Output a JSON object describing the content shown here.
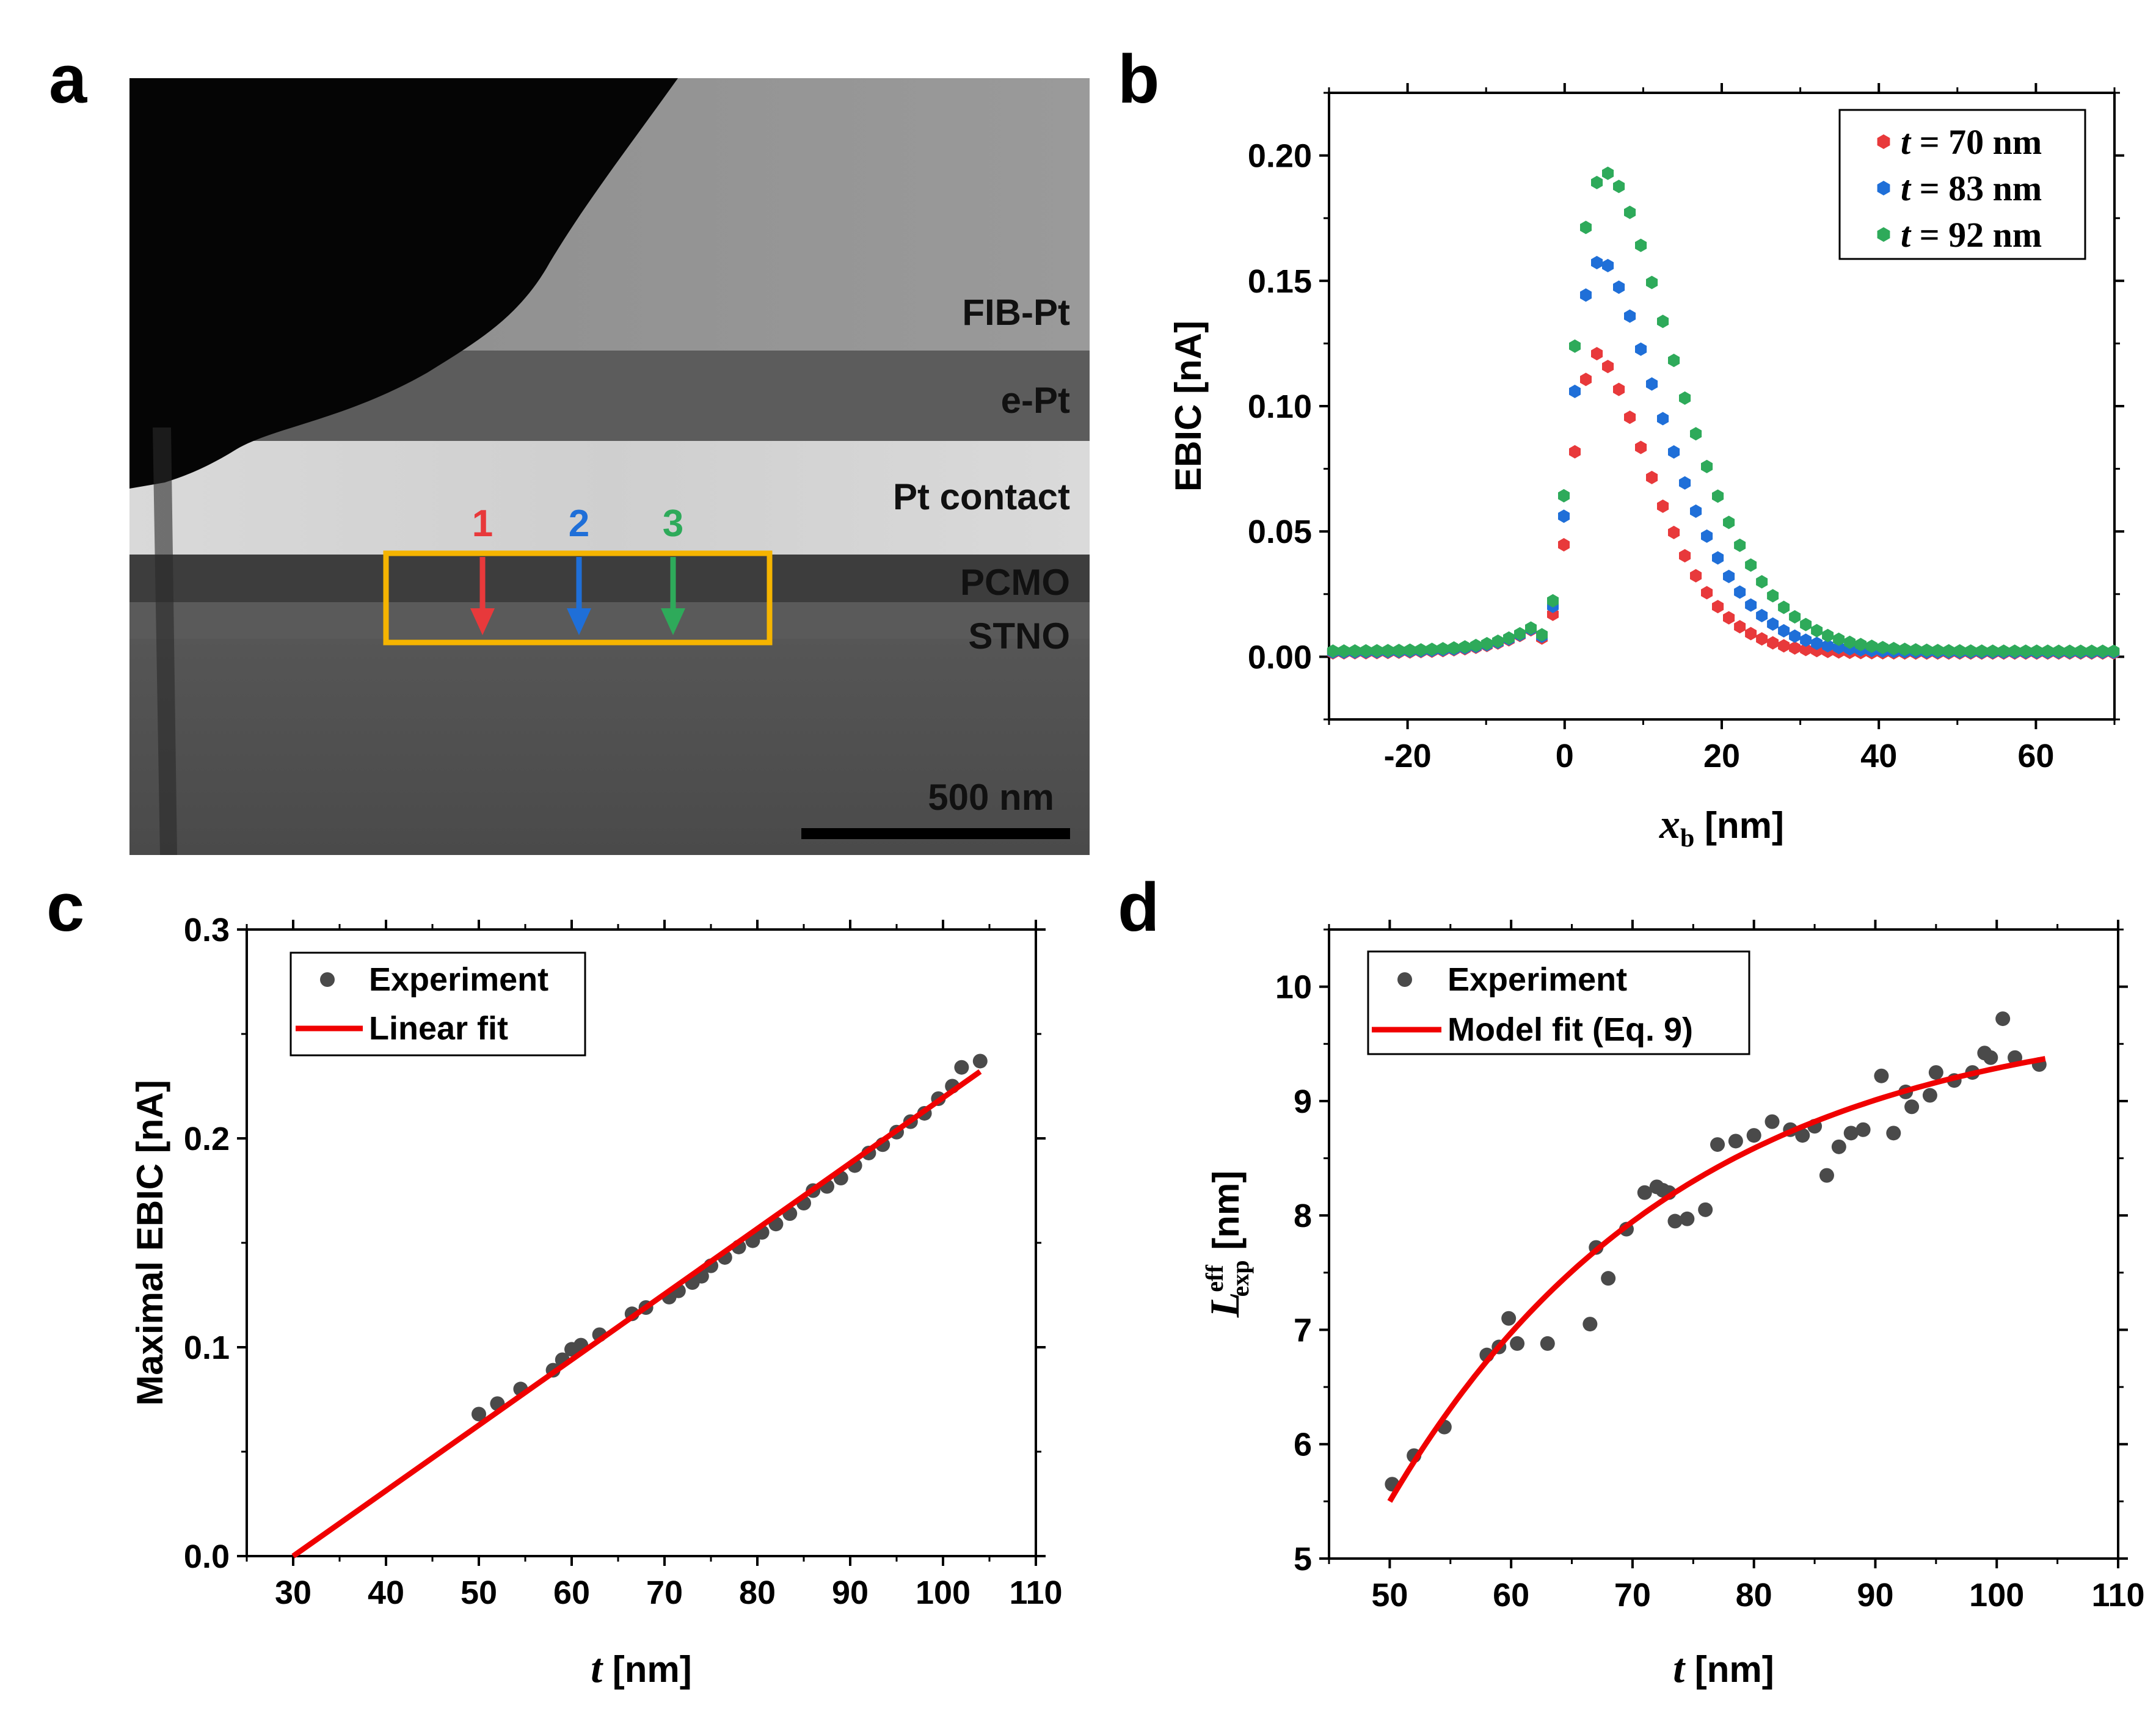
{
  "panels": {
    "a": {
      "letter": "a",
      "layer_labels": [
        "FIB-Pt",
        "e-Pt",
        "Pt contact",
        "PCMO",
        "STNO"
      ],
      "arrows": [
        {
          "label": "1",
          "color": "#e8393b"
        },
        {
          "label": "2",
          "color": "#1f6fd8"
        },
        {
          "label": "3",
          "color": "#2eaa5a"
        }
      ],
      "box_color": "#f5b400",
      "scale_bar_label": "500 nm"
    },
    "b": {
      "letter": "b"
    },
    "c": {
      "letter": "c"
    },
    "d": {
      "letter": "d"
    }
  },
  "chart_data": [
    {
      "id": "b",
      "type": "scatter",
      "xlabel_var": "x",
      "xlabel_sub": "b",
      "xlabel_unit": "[nm]",
      "ylabel": "EBIC [nA]",
      "xlim": [
        -30,
        70
      ],
      "ylim": [
        -0.025,
        0.225
      ],
      "xticks": [
        -20,
        0,
        20,
        40,
        60
      ],
      "yticks": [
        0.0,
        0.05,
        0.1,
        0.15,
        0.2
      ],
      "ytick_labels": [
        "0.00",
        "0.05",
        "0.10",
        "0.15",
        "0.20"
      ],
      "legend_position": "top-right",
      "series": [
        {
          "name": "t = 70 nm",
          "legend_var": "t",
          "legend_rest": "= 70 nm",
          "color": "#e8393b",
          "peak": 0.121,
          "peak_x": 4.0,
          "tail": 0.0015,
          "decay": 10.5
        },
        {
          "name": "t = 83 nm",
          "legend_var": "t",
          "legend_rest": "= 83 nm",
          "color": "#1f6fd8",
          "peak": 0.159,
          "peak_x": 4.5,
          "tail": 0.0018,
          "decay": 12.0
        },
        {
          "name": "t = 92 nm",
          "legend_var": "t",
          "legend_rest": "= 92 nm",
          "color": "#2eaa5a",
          "peak": 0.193,
          "peak_x": 5.5,
          "tail": 0.0022,
          "decay": 13.0
        }
      ]
    },
    {
      "id": "c",
      "type": "scatter",
      "xlabel_var": "t",
      "xlabel_unit": "[nm]",
      "ylabel": "Maximal EBIC [nA]",
      "xlim": [
        25,
        110
      ],
      "ylim": [
        0,
        0.3
      ],
      "xticks": [
        30,
        40,
        50,
        60,
        70,
        80,
        90,
        100,
        110
      ],
      "yticks": [
        0.0,
        0.1,
        0.2,
        0.3
      ],
      "ytick_labels": [
        "0.0",
        "0.1",
        "0.2",
        "0.3"
      ],
      "legend_position": "top-left",
      "legend": [
        "Experiment",
        "Linear fit"
      ],
      "experiment": {
        "x": [
          50,
          52,
          54.5,
          58,
          59,
          60,
          61,
          63,
          66.5,
          68,
          70.5,
          71.5,
          73,
          74,
          75,
          76.5,
          78,
          79.5,
          80.5,
          82,
          83.5,
          85,
          86,
          87.5,
          89,
          90.5,
          92,
          93.5,
          95,
          96.5,
          98,
          99.5,
          101,
          102,
          104
        ],
        "y": [
          0.068,
          0.073,
          0.08,
          0.089,
          0.094,
          0.099,
          0.101,
          0.106,
          0.116,
          0.119,
          0.124,
          0.127,
          0.131,
          0.134,
          0.139,
          0.143,
          0.148,
          0.151,
          0.155,
          0.159,
          0.164,
          0.169,
          0.175,
          0.177,
          0.181,
          0.187,
          0.193,
          0.197,
          0.203,
          0.208,
          0.212,
          0.219,
          0.225,
          0.234,
          0.237
        ]
      },
      "fit": {
        "x": [
          30,
          104
        ],
        "y": [
          0.0,
          0.232
        ]
      }
    },
    {
      "id": "d",
      "type": "scatter",
      "xlabel_var": "t",
      "xlabel_unit": "[nm]",
      "ylabel_var": "L",
      "ylabel_sup": "eff",
      "ylabel_sub": "exp",
      "ylabel_unit": "[nm]",
      "xlim": [
        45,
        110
      ],
      "ylim": [
        5,
        10.5
      ],
      "xticks": [
        50,
        60,
        70,
        80,
        90,
        100,
        110
      ],
      "yticks": [
        5,
        6,
        7,
        8,
        9,
        10
      ],
      "ytick_labels": [
        "5",
        "6",
        "7",
        "8",
        "9",
        "10"
      ],
      "legend_position": "top-left",
      "legend": [
        "Experiment",
        "Model fit (Eq. 9)"
      ],
      "experiment": {
        "x": [
          50.2,
          52,
          54.5,
          58,
          59,
          59.8,
          60.5,
          63,
          66.5,
          67,
          68,
          69.5,
          71,
          72,
          72.5,
          73,
          73.5,
          74.5,
          76,
          77,
          78.5,
          80,
          81.5,
          83,
          84,
          85,
          86,
          87,
          88,
          89,
          90.5,
          91.5,
          92.5,
          93,
          94.5,
          95,
          96.5,
          98,
          99,
          99.5,
          100.5,
          101.5,
          103.5
        ],
        "y": [
          5.65,
          5.9,
          6.15,
          6.78,
          6.85,
          7.1,
          6.88,
          6.88,
          7.05,
          7.72,
          7.45,
          7.88,
          8.2,
          8.25,
          8.22,
          8.2,
          7.95,
          7.97,
          8.05,
          8.62,
          8.65,
          8.7,
          8.82,
          8.75,
          8.7,
          8.78,
          8.35,
          8.6,
          8.72,
          8.75,
          9.22,
          8.72,
          9.08,
          8.95,
          9.05,
          9.25,
          9.18,
          9.25,
          9.42,
          9.38,
          9.72,
          9.38,
          9.32
        ]
      },
      "fit": {
        "x": [
          50,
          104
        ],
        "y": [
          5.5,
          9.37
        ]
      }
    }
  ]
}
